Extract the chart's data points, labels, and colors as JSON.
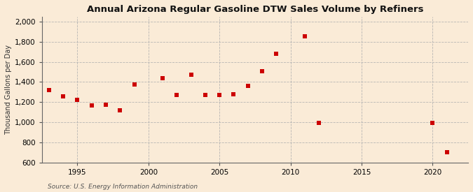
{
  "title": "Annual Arizona Regular Gasoline DTW Sales Volume by Refiners",
  "ylabel": "Thousand Gallons per Day",
  "source": "Source: U.S. Energy Information Administration",
  "background_color": "#faebd7",
  "plot_bg_color": "#faebd7",
  "marker_color": "#cc0000",
  "years_data": [
    1993,
    1994,
    1995,
    1996,
    1997,
    1998,
    1999,
    2001,
    2002,
    2003,
    2004,
    2005,
    2006,
    2007,
    2008,
    2009,
    2011,
    2012,
    2020,
    2021
  ],
  "values_data": [
    1320,
    1255,
    1220,
    1165,
    1175,
    1115,
    1375,
    1435,
    1270,
    1475,
    1270,
    1270,
    1280,
    1360,
    1510,
    1680,
    1855,
    990,
    990,
    700
  ],
  "ylim": [
    600,
    2000
  ],
  "yticks": [
    600,
    800,
    1000,
    1200,
    1400,
    1600,
    1800,
    2000
  ],
  "xlim": [
    1992.5,
    2022.5
  ],
  "xticks": [
    1995,
    2000,
    2005,
    2010,
    2015,
    2020
  ]
}
